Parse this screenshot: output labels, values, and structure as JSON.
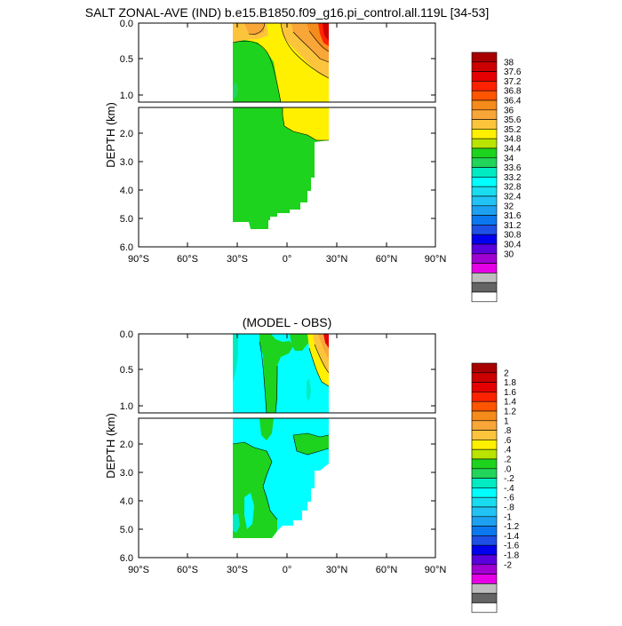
{
  "chart_data": [
    {
      "type": "heatmap",
      "title": "SALT ZONAL-AVE (IND) b.e15.B1850.f09_g16.pi_control.all.119L [34-53]",
      "ylabel": "DEPTH (km)",
      "xlabel": "",
      "x_ticks": [
        "90°S",
        "60°S",
        "30°S",
        "0°",
        "30°N",
        "60°N",
        "90°N"
      ],
      "y_ticks_upper": [
        "0.0",
        "0.5",
        "1.0"
      ],
      "y_ticks_lower": [
        "2.0",
        "3.0",
        "4.0",
        "5.0",
        "6.0"
      ],
      "xlim": [
        -90,
        90
      ],
      "ylim_upper": [
        0,
        1.1
      ],
      "ylim_lower": [
        1.1,
        6.0
      ],
      "grid": false,
      "colorbar": {
        "placement": "right",
        "labels": [
          "38",
          "37.6",
          "37.2",
          "36.8",
          "36.4",
          "36",
          "35.6",
          "35.2",
          "34.8",
          "34.4",
          "34",
          "33.6",
          "33.2",
          "32.8",
          "32.4",
          "32",
          "31.6",
          "31.2",
          "30.8",
          "30.4",
          "30"
        ],
        "colors": [
          "#a80000",
          "#cc0000",
          "#e40000",
          "#ff2200",
          "#ff5500",
          "#f58b1a",
          "#f8a638",
          "#fcc43c",
          "#fff000",
          "#b8e400",
          "#1ed31e",
          "#22d45a",
          "#00ebc2",
          "#00ffff",
          "#19dcf0",
          "#22c3f4",
          "#1da0f0",
          "#0b78f0",
          "#1e50e6",
          "#0000ee",
          "#5a00dc",
          "#a000d2",
          "#e600e6",
          "#bebebe",
          "#646464",
          "#ffffff"
        ]
      },
      "fields": [
        {
          "region": "basin below 1.1 km (south of ~12°S)",
          "value_range": [
            34.4,
            34.8
          ]
        },
        {
          "region": "basin below 1.1 km (north of ~12°S)",
          "value_range": [
            34.8,
            35.2
          ]
        },
        {
          "region": "upper 1 km, north of ~10°S",
          "value_range": [
            34.8,
            35.6
          ]
        },
        {
          "region": "surface near 25°N",
          "value_range": [
            37.6,
            38
          ]
        },
        {
          "region": "surface near 30°S",
          "value_range": [
            35.6,
            36
          ]
        }
      ]
    },
    {
      "type": "heatmap",
      "title": "(MODEL - OBS)",
      "ylabel": "DEPTH (km)",
      "xlabel": "",
      "x_ticks": [
        "90°S",
        "60°S",
        "30°S",
        "0°",
        "30°N",
        "60°N",
        "90°N"
      ],
      "y_ticks_upper": [
        "0.0",
        "0.5",
        "1.0"
      ],
      "y_ticks_lower": [
        "2.0",
        "3.0",
        "4.0",
        "5.0",
        "6.0"
      ],
      "xlim": [
        -90,
        90
      ],
      "ylim_upper": [
        0,
        1.1
      ],
      "ylim_lower": [
        1.1,
        6.0
      ],
      "grid": false,
      "colorbar": {
        "placement": "right",
        "labels": [
          "2",
          "1.8",
          "1.6",
          "1.4",
          "1.2",
          "1",
          ".8",
          ".6",
          ".4",
          ".2",
          ".0",
          "-.2",
          "-.4",
          "-.6",
          "-.8",
          "-1",
          "-1.2",
          "-1.4",
          "-1.6",
          "-1.8",
          "-2"
        ],
        "colors": [
          "#a80000",
          "#cc0000",
          "#e40000",
          "#ff2200",
          "#ff5500",
          "#f58b1a",
          "#f8a638",
          "#fcc43c",
          "#fff000",
          "#b8e400",
          "#1ed31e",
          "#22d45a",
          "#00ebc2",
          "#00ffff",
          "#19dcf0",
          "#22c3f4",
          "#1da0f0",
          "#0b78f0",
          "#1e50e6",
          "#0000ee",
          "#5a00dc",
          "#a000d2",
          "#e600e6",
          "#bebebe",
          "#646464",
          "#ffffff"
        ]
      },
      "fields": [
        {
          "region": "most of basin",
          "value_range": [
            -0.2,
            0.0
          ]
        },
        {
          "region": "deep water, southern half",
          "value_range": [
            0.0,
            0.2
          ]
        },
        {
          "region": "surface near 25°N",
          "value_range": [
            1.6,
            2.0
          ]
        }
      ]
    }
  ],
  "colors": {
    "salt_low_green": "#22d45a",
    "salt_mid_green": "#1ed31e",
    "salt_yellow": "#fff000",
    "salt_orange": "#f8a638",
    "salt_red": "#cc0000",
    "anom_cyan": "#00ffff",
    "anom_green": "#1ed31e"
  }
}
